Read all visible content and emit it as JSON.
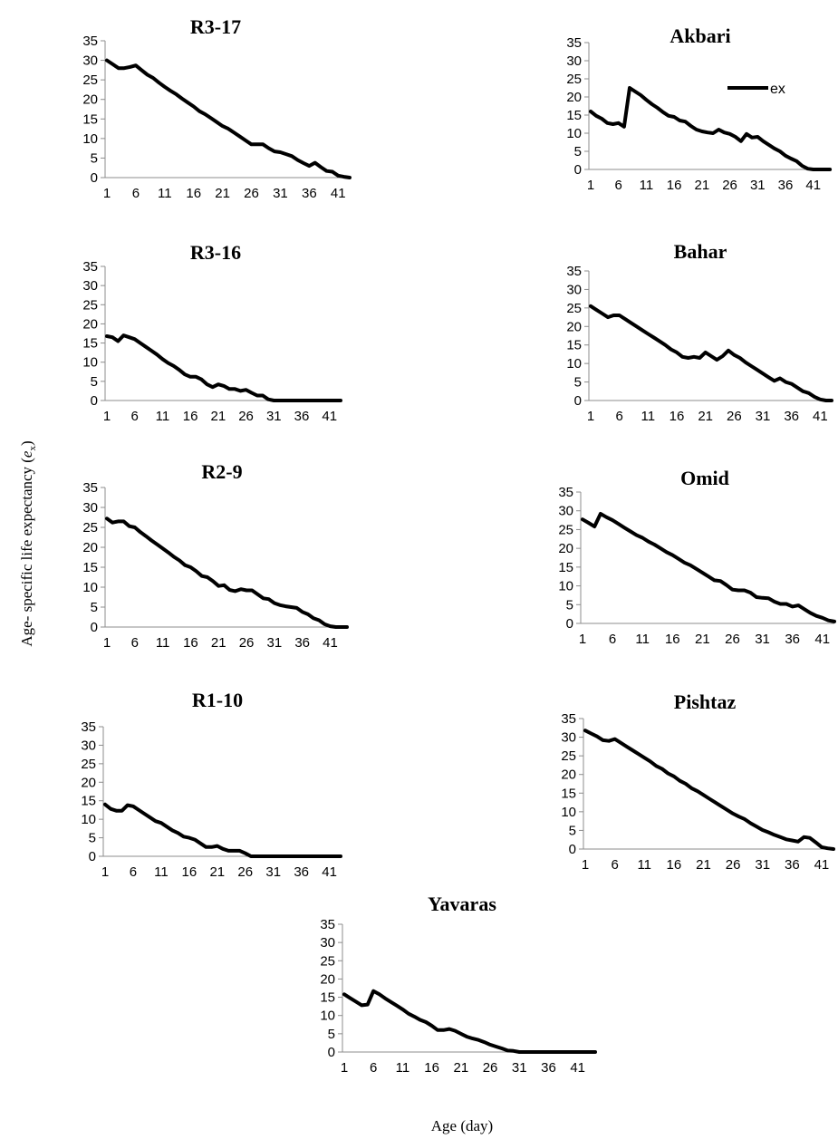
{
  "figure": {
    "ylabel_main": "Age- specific life expectancy (",
    "ylabel_var": "e",
    "ylabel_sub": "x",
    "ylabel_close": ")",
    "xlabel": "Age (day)"
  },
  "chart_data": [
    {
      "type": "line",
      "title": "R3-17",
      "ylim": [
        0,
        35
      ],
      "yticks": [
        0,
        5,
        10,
        15,
        20,
        25,
        30,
        35
      ],
      "xticks": [
        1,
        6,
        11,
        16,
        21,
        26,
        31,
        36,
        41
      ],
      "xmax": 43,
      "series": [
        {
          "x": [
            1,
            2,
            3,
            4,
            5,
            6,
            7,
            8,
            9,
            10,
            11,
            12,
            13,
            14,
            15,
            16,
            17,
            18,
            19,
            20,
            21,
            22,
            23,
            24,
            25,
            26,
            27,
            28,
            29,
            30,
            31,
            32,
            33,
            34,
            35,
            36,
            37,
            38,
            39,
            40,
            41,
            42,
            43
          ],
          "values": [
            30,
            29,
            28,
            28,
            28.3,
            28.7,
            27.5,
            26.3,
            25.5,
            24.3,
            23.2,
            22.2,
            21.3,
            20.2,
            19.2,
            18.2,
            17,
            16.2,
            15.2,
            14.2,
            13.2,
            12.5,
            11.5,
            10.5,
            9.5,
            8.5,
            8.5,
            8.5,
            7.5,
            6.7,
            6.5,
            6,
            5.5,
            4.5,
            3.7,
            3,
            3.8,
            2.7,
            1.7,
            1.5,
            0.5,
            0.2,
            0
          ]
        }
      ]
    },
    {
      "type": "line",
      "title": "Akbari",
      "ylim": [
        0,
        35
      ],
      "yticks": [
        0,
        5,
        10,
        15,
        20,
        25,
        30,
        35
      ],
      "xticks": [
        1,
        6,
        11,
        16,
        21,
        26,
        31,
        36,
        41
      ],
      "xmax": 43,
      "legend": "ex",
      "legend_position": "top-right",
      "series": [
        {
          "name": "ex",
          "x": [
            1,
            2,
            3,
            4,
            5,
            6,
            7,
            8,
            9,
            10,
            11,
            12,
            13,
            14,
            15,
            16,
            17,
            18,
            19,
            20,
            21,
            22,
            23,
            24,
            25,
            26,
            27,
            28,
            29,
            30,
            31,
            32,
            33,
            34,
            35,
            36,
            37,
            38,
            39,
            40,
            41,
            42,
            43,
            44
          ],
          "values": [
            16,
            14.8,
            14,
            12.8,
            12.5,
            12.8,
            11.8,
            22.5,
            21.5,
            20.5,
            19.2,
            18,
            17,
            15.8,
            14.8,
            14.5,
            13.5,
            13.2,
            12,
            11,
            10.5,
            10.2,
            10,
            11,
            10.2,
            9.8,
            9,
            7.8,
            9.8,
            8.8,
            9,
            7.8,
            6.8,
            5.8,
            5,
            3.8,
            3,
            2.3,
            1,
            0.2,
            0,
            0,
            0,
            0
          ]
        }
      ]
    },
    {
      "type": "line",
      "title": "R3-16",
      "ylim": [
        0,
        35
      ],
      "yticks": [
        0,
        5,
        10,
        15,
        20,
        25,
        30,
        35
      ],
      "xticks": [
        1,
        6,
        11,
        16,
        21,
        26,
        31,
        36,
        41
      ],
      "xmax": 43,
      "series": [
        {
          "x": [
            1,
            2,
            3,
            4,
            5,
            6,
            7,
            8,
            9,
            10,
            11,
            12,
            13,
            14,
            15,
            16,
            17,
            18,
            19,
            20,
            21,
            22,
            23,
            24,
            25,
            26,
            27,
            28,
            29,
            30,
            31,
            32,
            33,
            34,
            35,
            36,
            37,
            38,
            39,
            40,
            41,
            42,
            43
          ],
          "values": [
            16.8,
            16.5,
            15.5,
            17,
            16.5,
            16,
            15,
            14,
            13,
            12,
            10.8,
            9.8,
            9,
            8,
            6.8,
            6.2,
            6.2,
            5.5,
            4.2,
            3.5,
            4.2,
            3.8,
            3,
            3,
            2.5,
            2.8,
            2,
            1.3,
            1.3,
            0.3,
            0,
            0,
            0,
            0,
            0,
            0,
            0,
            0,
            0,
            0,
            0,
            0,
            0
          ]
        }
      ]
    },
    {
      "type": "line",
      "title": "Bahar",
      "ylim": [
        0,
        35
      ],
      "yticks": [
        0,
        5,
        10,
        15,
        20,
        25,
        30,
        35
      ],
      "xticks": [
        1,
        6,
        11,
        16,
        21,
        26,
        31,
        36,
        41
      ],
      "xmax": 43,
      "series": [
        {
          "x": [
            1,
            2,
            3,
            4,
            5,
            6,
            7,
            8,
            9,
            10,
            11,
            12,
            13,
            14,
            15,
            16,
            17,
            18,
            19,
            20,
            21,
            22,
            23,
            24,
            25,
            26,
            27,
            28,
            29,
            30,
            31,
            32,
            33,
            34,
            35,
            36,
            37,
            38,
            39,
            40,
            41,
            42,
            43
          ],
          "values": [
            25.5,
            24.5,
            23.5,
            22.5,
            23,
            23,
            22,
            21,
            20,
            19,
            18,
            17,
            16,
            15,
            13.8,
            13,
            11.8,
            11.5,
            11.8,
            11.5,
            13,
            12,
            11,
            12,
            13.5,
            12.3,
            11.5,
            10.3,
            9.3,
            8.3,
            7.3,
            6.3,
            5.3,
            6,
            5,
            4.5,
            3.5,
            2.5,
            2,
            1,
            0.3,
            0,
            0
          ]
        }
      ]
    },
    {
      "type": "line",
      "title": "R2-9",
      "ylim": [
        0,
        35
      ],
      "yticks": [
        0,
        5,
        10,
        15,
        20,
        25,
        30,
        35
      ],
      "xticks": [
        1,
        6,
        11,
        16,
        21,
        26,
        31,
        36,
        41
      ],
      "xmax": 44,
      "series": [
        {
          "x": [
            1,
            2,
            3,
            4,
            5,
            6,
            7,
            8,
            9,
            10,
            11,
            12,
            13,
            14,
            15,
            16,
            17,
            18,
            19,
            20,
            21,
            22,
            23,
            24,
            25,
            26,
            27,
            28,
            29,
            30,
            31,
            32,
            33,
            34,
            35,
            36,
            37,
            38,
            39,
            40,
            41,
            42,
            43,
            44
          ],
          "values": [
            27.2,
            26.2,
            26.5,
            26.5,
            25.3,
            25,
            23.8,
            22.8,
            21.7,
            20.7,
            19.7,
            18.7,
            17.6,
            16.7,
            15.5,
            15,
            14,
            12.8,
            12.5,
            11.5,
            10.3,
            10.5,
            9.3,
            9,
            9.5,
            9.2,
            9.2,
            8.2,
            7.2,
            7,
            6,
            5.5,
            5.2,
            5,
            4.8,
            3.8,
            3.2,
            2.2,
            1.7,
            0.7,
            0.2,
            0,
            0,
            0
          ]
        }
      ]
    },
    {
      "type": "line",
      "title": "Omid",
      "ylim": [
        0,
        35
      ],
      "yticks": [
        0,
        5,
        10,
        15,
        20,
        25,
        30,
        35
      ],
      "xticks": [
        1,
        6,
        11,
        16,
        21,
        26,
        31,
        36,
        41
      ],
      "xmax": 43,
      "series": [
        {
          "x": [
            1,
            2,
            3,
            4,
            5,
            6,
            7,
            8,
            9,
            10,
            11,
            12,
            13,
            14,
            15,
            16,
            17,
            18,
            19,
            20,
            21,
            22,
            23,
            24,
            25,
            26,
            27,
            28,
            29,
            30,
            31,
            32,
            33,
            34,
            35,
            36,
            37,
            38,
            39,
            40,
            41,
            42,
            43
          ],
          "values": [
            27.7,
            26.8,
            25.8,
            29.2,
            28.3,
            27.5,
            26.5,
            25.5,
            24.5,
            23.5,
            22.8,
            21.8,
            21,
            20,
            19,
            18.2,
            17.2,
            16.2,
            15.5,
            14.5,
            13.5,
            12.5,
            11.5,
            11.3,
            10.2,
            9,
            8.8,
            8.8,
            8.2,
            7,
            6.8,
            6.7,
            5.8,
            5.2,
            5.2,
            4.5,
            4.8,
            3.8,
            2.8,
            2,
            1.5,
            0.8,
            0.5
          ]
        }
      ]
    },
    {
      "type": "line",
      "title": "R1-10",
      "ylim": [
        0,
        35
      ],
      "yticks": [
        0,
        5,
        10,
        15,
        20,
        25,
        30,
        35
      ],
      "xticks": [
        1,
        6,
        11,
        16,
        21,
        26,
        31,
        36,
        41
      ],
      "xmax": 43,
      "series": [
        {
          "x": [
            1,
            2,
            3,
            4,
            5,
            6,
            7,
            8,
            9,
            10,
            11,
            12,
            13,
            14,
            15,
            16,
            17,
            18,
            19,
            20,
            21,
            22,
            23,
            24,
            25,
            26,
            27,
            28,
            29,
            30,
            31,
            32,
            33,
            34,
            35,
            36,
            37,
            38,
            39,
            40,
            41,
            42,
            43
          ],
          "values": [
            14,
            12.8,
            12.3,
            12.3,
            13.8,
            13.5,
            12.5,
            11.5,
            10.5,
            9.5,
            9,
            8,
            7,
            6.3,
            5.3,
            5,
            4.5,
            3.5,
            2.5,
            2.5,
            2.8,
            2,
            1.5,
            1.5,
            1.5,
            0.8,
            0,
            0,
            0,
            0,
            0,
            0,
            0,
            0,
            0,
            0,
            0,
            0,
            0,
            0,
            0,
            0,
            0
          ]
        }
      ]
    },
    {
      "type": "line",
      "title": "Pishtaz",
      "ylim": [
        0,
        35
      ],
      "yticks": [
        0,
        5,
        10,
        15,
        20,
        25,
        30,
        35
      ],
      "xticks": [
        1,
        6,
        11,
        16,
        21,
        26,
        31,
        36,
        41
      ],
      "xmax": 43,
      "series": [
        {
          "x": [
            1,
            2,
            3,
            4,
            5,
            6,
            7,
            8,
            9,
            10,
            11,
            12,
            13,
            14,
            15,
            16,
            17,
            18,
            19,
            20,
            21,
            22,
            23,
            24,
            25,
            26,
            27,
            28,
            29,
            30,
            31,
            32,
            33,
            34,
            35,
            36,
            37,
            38,
            39,
            40,
            41,
            42,
            43
          ],
          "values": [
            31.8,
            31,
            30.2,
            29.2,
            29,
            29.5,
            28.5,
            27.5,
            26.5,
            25.5,
            24.5,
            23.5,
            22.3,
            21.5,
            20.3,
            19.5,
            18.3,
            17.5,
            16.3,
            15.5,
            14.5,
            13.5,
            12.5,
            11.5,
            10.5,
            9.5,
            8.7,
            8,
            6.9,
            6,
            5.1,
            4.5,
            3.8,
            3.2,
            2.6,
            2.3,
            2,
            3.2,
            3,
            1.8,
            0.5,
            0.2,
            0
          ]
        }
      ]
    },
    {
      "type": "line",
      "title": "Yavaras",
      "ylim": [
        0,
        35
      ],
      "yticks": [
        0,
        5,
        10,
        15,
        20,
        25,
        30,
        35
      ],
      "xticks": [
        1,
        6,
        11,
        16,
        21,
        26,
        31,
        36,
        41
      ],
      "xmax": 44,
      "series": [
        {
          "x": [
            1,
            2,
            3,
            4,
            5,
            6,
            7,
            8,
            9,
            10,
            11,
            12,
            13,
            14,
            15,
            16,
            17,
            18,
            19,
            20,
            21,
            22,
            23,
            24,
            25,
            26,
            27,
            28,
            29,
            30,
            31,
            32,
            33,
            34,
            35,
            36,
            37,
            38,
            39,
            40,
            41,
            42,
            43,
            44
          ],
          "values": [
            15.8,
            14.8,
            13.8,
            12.8,
            13,
            16.7,
            15.8,
            14.7,
            13.7,
            12.7,
            11.7,
            10.5,
            9.7,
            8.8,
            8.2,
            7.2,
            6,
            6,
            6.3,
            5.8,
            5,
            4.2,
            3.7,
            3.3,
            2.7,
            2,
            1.5,
            1,
            0.4,
            0.3,
            0,
            0,
            0,
            0,
            0,
            0,
            0,
            0,
            0,
            0,
            0,
            0,
            0,
            0
          ]
        }
      ]
    }
  ]
}
